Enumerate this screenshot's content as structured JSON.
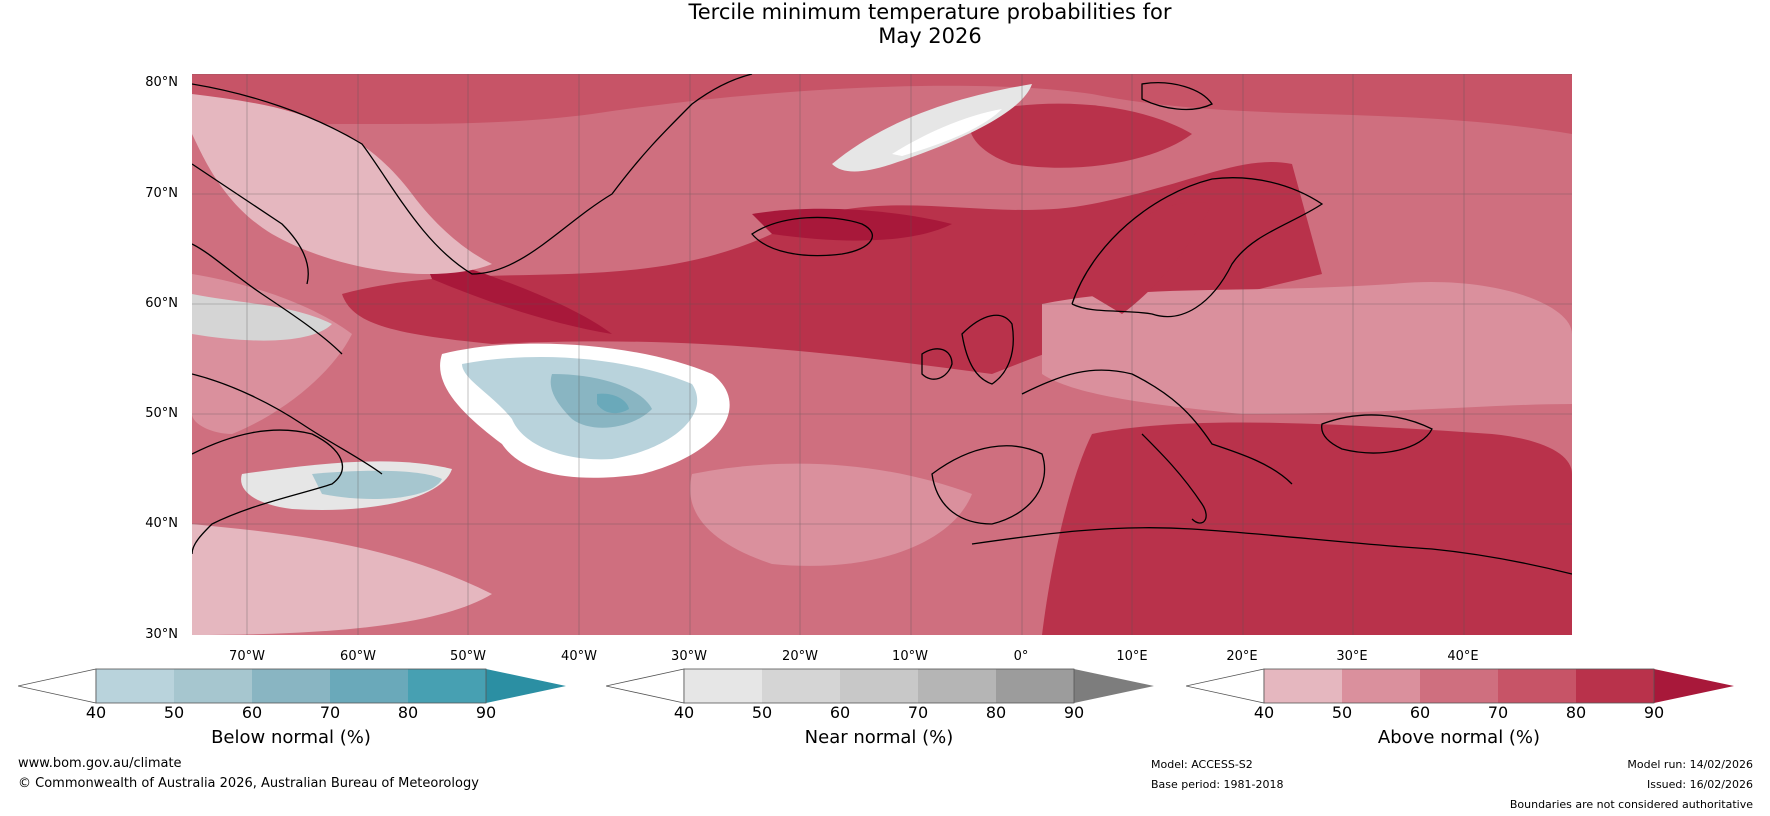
{
  "title_line1": "Tercile minimum temperature probabilities for",
  "title_line2": "May 2026",
  "map": {
    "lat_labels": [
      "80°N",
      "70°N",
      "60°N",
      "50°N",
      "40°N",
      "30°N"
    ],
    "lon_labels": [
      "70°W",
      "60°W",
      "50°W",
      "40°W",
      "30°W",
      "20°W",
      "10°W",
      "0°",
      "10°E",
      "20°E",
      "30°E",
      "40°E"
    ],
    "colors": {
      "above": [
        "#e5b7bf",
        "#da909d",
        "#cf6f7f",
        "#c75467",
        "#b9324b",
        "#a8183a"
      ],
      "near": [
        "#ffffff",
        "#e6e6e6",
        "#d5d5d5",
        "#c8c8c8",
        "#b5b5b5",
        "#9c9c9c",
        "#7d7d7d"
      ],
      "below": [
        "#ffffff",
        "#b9d3dc",
        "#a6c6cf",
        "#89b5c2",
        "#6aa9ba",
        "#47a0b2",
        "#2b8fa3"
      ]
    }
  },
  "colorbars": [
    {
      "label": "Below normal (%)",
      "ticks": [
        "40",
        "50",
        "60",
        "70",
        "80",
        "90"
      ],
      "colors": [
        "#b9d3dc",
        "#a6c6cf",
        "#89b5c2",
        "#6aa9ba",
        "#47a0b2"
      ],
      "low_color": "#ffffff",
      "high_color": "#2b8fa3"
    },
    {
      "label": "Near normal (%)",
      "ticks": [
        "40",
        "50",
        "60",
        "70",
        "80",
        "90"
      ],
      "colors": [
        "#e6e6e6",
        "#d5d5d5",
        "#c8c8c8",
        "#b5b5b5",
        "#9c9c9c"
      ],
      "low_color": "#ffffff",
      "high_color": "#7d7d7d"
    },
    {
      "label": "Above normal (%)",
      "ticks": [
        "40",
        "50",
        "60",
        "70",
        "80",
        "90"
      ],
      "colors": [
        "#e5b7bf",
        "#da909d",
        "#cf6f7f",
        "#c75467",
        "#b9324b"
      ],
      "low_color": "#ffffff",
      "high_color": "#a8183a"
    }
  ],
  "footer": {
    "url": "www.bom.gov.au/climate",
    "copyright": "© Commonwealth of Australia 2026, Australian Bureau of Meteorology",
    "model": "Model: ACCESS-S2",
    "base_period": "Base period: 1981-2018",
    "model_run": "Model run: 14/02/2026",
    "issued": "Issued: 16/02/2026",
    "disclaimer": "Boundaries are not considered authoritative"
  }
}
